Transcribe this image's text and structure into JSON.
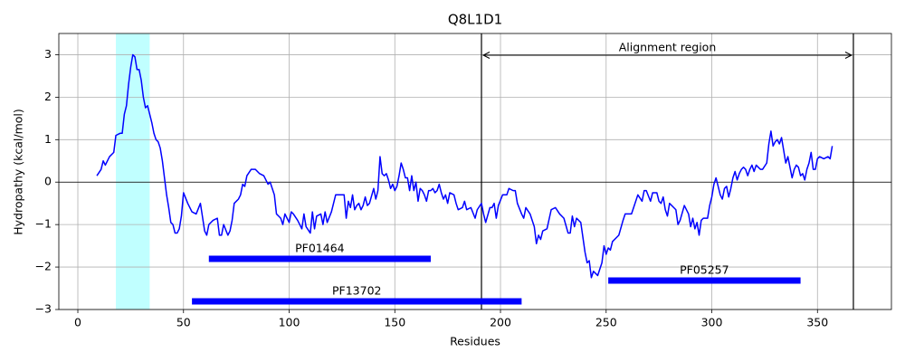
{
  "chart_data": {
    "type": "line",
    "title": "Q8L1D1",
    "x_label": "Residues",
    "y_label": "Hydropathy (kcal/mol)",
    "color": "#0000ff",
    "x": [
      9,
      11,
      12,
      13,
      15,
      17,
      18,
      20,
      21,
      22,
      23,
      24,
      25,
      26,
      27,
      28,
      29,
      30,
      31,
      32,
      33,
      34,
      35,
      36,
      37,
      38,
      39,
      40,
      41,
      42,
      43,
      44,
      45,
      46,
      47,
      48,
      49,
      50,
      52,
      54,
      56,
      58,
      60,
      61,
      62,
      64,
      66,
      67,
      68,
      69,
      71,
      72,
      73,
      74,
      76,
      77,
      78,
      79,
      80,
      82,
      84,
      86,
      88,
      90,
      91,
      93,
      94,
      95,
      96,
      97,
      98,
      99,
      100,
      101,
      102,
      104,
      106,
      107,
      108,
      110,
      111,
      112,
      113,
      115,
      116,
      117,
      118,
      120,
      122,
      124,
      126,
      127,
      128,
      129,
      130,
      131,
      132,
      133,
      134,
      135,
      136,
      137,
      138,
      140,
      141,
      142,
      143,
      144,
      145,
      146,
      147,
      148,
      149,
      150,
      151,
      152,
      153,
      154,
      155,
      156,
      157,
      158,
      159,
      160,
      161,
      162,
      163,
      164,
      165,
      166,
      167,
      168,
      169,
      170,
      171,
      172,
      173,
      174,
      175,
      176,
      178,
      179,
      180,
      182,
      183,
      184,
      186,
      188,
      189,
      191,
      192,
      193,
      195,
      196,
      197,
      198,
      199,
      201,
      203,
      204,
      206,
      207,
      208,
      210,
      211,
      212,
      214,
      216,
      217,
      218,
      219,
      220,
      222,
      224,
      226,
      228,
      230,
      232,
      233,
      234,
      235,
      236,
      238,
      240,
      241,
      242,
      243,
      244,
      246,
      248,
      249,
      250,
      251,
      252,
      253,
      255,
      256,
      258,
      259,
      261,
      262,
      263,
      265,
      267,
      268,
      269,
      271,
      272,
      274,
      275,
      276,
      277,
      278,
      279,
      280,
      282,
      283,
      284,
      285,
      287,
      289,
      290,
      291,
      292,
      293,
      294,
      295,
      296,
      298,
      299,
      300,
      301,
      302,
      303,
      304,
      305,
      306,
      307,
      308,
      309,
      310,
      311,
      312,
      313,
      314,
      315,
      316,
      317,
      318,
      319,
      320,
      321,
      322,
      323,
      324,
      326,
      327,
      328,
      329,
      330,
      331,
      332,
      333,
      334,
      335,
      336,
      337,
      338,
      339,
      340,
      341,
      342,
      343,
      344,
      345,
      346,
      347,
      348,
      349,
      350,
      351,
      353,
      355,
      356,
      357
    ],
    "values": [
      0.15,
      0.3,
      0.5,
      0.4,
      0.6,
      0.7,
      1.1,
      1.15,
      1.15,
      1.6,
      1.8,
      2.3,
      2.7,
      3.0,
      2.95,
      2.65,
      2.65,
      2.4,
      2.0,
      1.75,
      1.8,
      1.6,
      1.4,
      1.15,
      1.0,
      0.95,
      0.8,
      0.5,
      0.1,
      -0.3,
      -0.6,
      -0.95,
      -1.0,
      -1.2,
      -1.2,
      -1.1,
      -0.8,
      -0.25,
      -0.5,
      -0.7,
      -0.75,
      -0.5,
      -1.15,
      -1.25,
      -1.0,
      -0.9,
      -0.85,
      -1.25,
      -1.25,
      -1.0,
      -1.25,
      -1.15,
      -0.9,
      -0.5,
      -0.4,
      -0.3,
      -0.05,
      -0.1,
      0.15,
      0.3,
      0.3,
      0.2,
      0.15,
      -0.05,
      0.0,
      -0.3,
      -0.75,
      -0.8,
      -0.85,
      -1.0,
      -0.75,
      -0.85,
      -0.95,
      -0.7,
      -0.75,
      -0.9,
      -1.1,
      -0.75,
      -1.05,
      -1.2,
      -0.7,
      -1.1,
      -0.8,
      -0.75,
      -1.0,
      -0.7,
      -0.95,
      -0.7,
      -0.3,
      -0.3,
      -0.3,
      -0.85,
      -0.45,
      -0.6,
      -0.3,
      -0.65,
      -0.55,
      -0.5,
      -0.65,
      -0.55,
      -0.35,
      -0.55,
      -0.5,
      -0.15,
      -0.4,
      -0.2,
      0.6,
      0.2,
      0.15,
      0.2,
      0.05,
      -0.15,
      -0.05,
      -0.2,
      -0.1,
      0.15,
      0.45,
      0.3,
      0.1,
      0.1,
      -0.2,
      0.15,
      -0.2,
      0.0,
      -0.45,
      -0.15,
      -0.2,
      -0.3,
      -0.45,
      -0.2,
      -0.2,
      -0.15,
      -0.25,
      -0.2,
      -0.05,
      -0.25,
      -0.4,
      -0.3,
      -0.5,
      -0.25,
      -0.3,
      -0.5,
      -0.65,
      -0.6,
      -0.45,
      -0.65,
      -0.6,
      -0.85,
      -0.65,
      -0.5,
      -0.75,
      -0.95,
      -0.6,
      -0.6,
      -0.5,
      -0.85,
      -0.55,
      -0.3,
      -0.3,
      -0.15,
      -0.2,
      -0.2,
      -0.5,
      -0.75,
      -0.85,
      -0.6,
      -0.75,
      -1.05,
      -1.45,
      -1.25,
      -1.35,
      -1.15,
      -1.1,
      -0.65,
      -0.6,
      -0.75,
      -0.85,
      -1.2,
      -1.2,
      -0.8,
      -1.05,
      -0.85,
      -0.95,
      -1.65,
      -1.9,
      -1.85,
      -2.25,
      -2.1,
      -2.2,
      -1.9,
      -1.5,
      -1.7,
      -1.55,
      -1.6,
      -1.4,
      -1.3,
      -1.25,
      -0.9,
      -0.75,
      -0.75,
      -0.75,
      -0.6,
      -0.3,
      -0.45,
      -0.2,
      -0.2,
      -0.45,
      -0.25,
      -0.25,
      -0.45,
      -0.5,
      -0.35,
      -0.65,
      -0.8,
      -0.5,
      -0.6,
      -0.65,
      -1.0,
      -0.9,
      -0.55,
      -0.75,
      -1.05,
      -0.85,
      -1.1,
      -0.95,
      -1.25,
      -0.9,
      -0.85,
      -0.85,
      -0.55,
      -0.35,
      -0.05,
      0.1,
      -0.1,
      -0.3,
      -0.4,
      -0.15,
      -0.1,
      -0.35,
      -0.15,
      0.1,
      0.25,
      0.05,
      0.2,
      0.3,
      0.35,
      0.3,
      0.15,
      0.3,
      0.4,
      0.25,
      0.4,
      0.35,
      0.3,
      0.3,
      0.45,
      0.9,
      1.2,
      0.85,
      0.95,
      1.0,
      0.9,
      1.05,
      0.75,
      0.45,
      0.6,
      0.35,
      0.1,
      0.3,
      0.4,
      0.35,
      0.15,
      0.2,
      0.05,
      0.3,
      0.45,
      0.7,
      0.3,
      0.3,
      0.55,
      0.6,
      0.55,
      0.6,
      0.55,
      0.85
    ],
    "xlim": [
      -9,
      385
    ],
    "ylim": [
      -3,
      3.5
    ],
    "xticks": [
      0,
      50,
      100,
      150,
      200,
      250,
      300,
      350
    ],
    "yticks": [
      {
        "value": -3,
        "label": "−3"
      },
      {
        "value": -2,
        "label": "−2"
      },
      {
        "value": -1,
        "label": "−1"
      },
      0,
      1,
      2,
      3
    ],
    "grid": true,
    "hline": 0,
    "highlight": {
      "start": 18,
      "end": 34,
      "color": "#c0ffff"
    },
    "alignment": {
      "label": "Alignment region",
      "start": 191,
      "end": 367
    },
    "domains": [
      {
        "label": "PF01464",
        "start": 62,
        "end": 167
      },
      {
        "label": "PF13702",
        "start": 54,
        "end": 210
      },
      {
        "label": "PF05257",
        "start": 251,
        "end": 342
      }
    ],
    "domain_color": "#0000ff"
  }
}
